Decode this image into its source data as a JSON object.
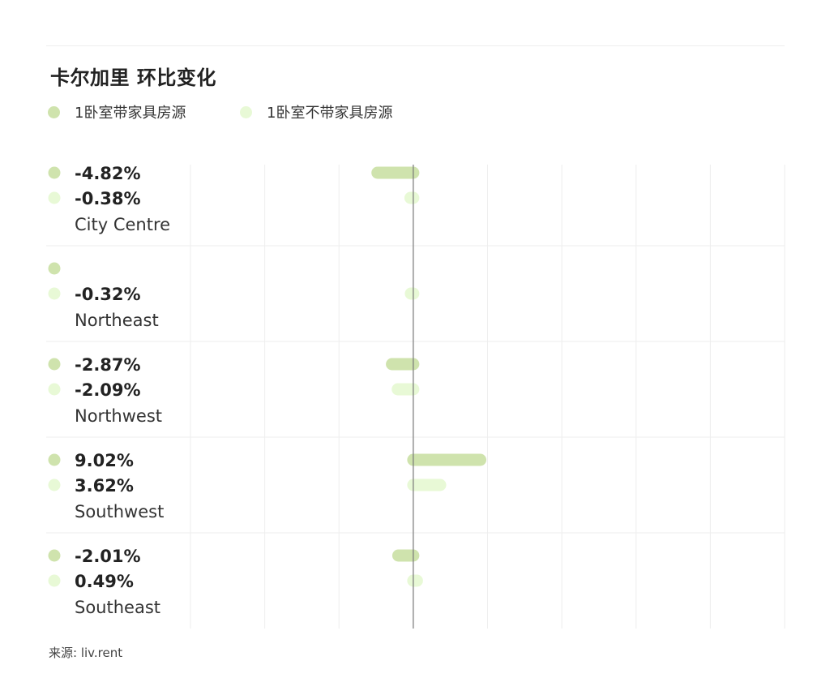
{
  "colors": {
    "furnished": "#cfe3ad",
    "unfurnished": "#e8f9d6",
    "axis": "#777777",
    "grid": "#eeeeee"
  },
  "source_label": "来源: liv.rent",
  "chart_data": {
    "type": "bar",
    "orientation": "horizontal",
    "title": "卡尔加里 环比变化",
    "legend_position": "top-left",
    "grid": true,
    "xlim": [
      -30,
      50
    ],
    "series": [
      {
        "name": "1卧室带家具房源",
        "values": [
          -4.82,
          null,
          -2.87,
          9.02,
          -2.01
        ],
        "labels": [
          "-4.82%",
          "",
          "-2.87%",
          "9.02%",
          "-2.01%"
        ]
      },
      {
        "name": "1卧室不带家具房源",
        "values": [
          -0.38,
          -0.32,
          -2.09,
          3.62,
          0.49
        ],
        "labels": [
          "-0.38%",
          "-0.32%",
          "-2.09%",
          "3.62%",
          "0.49%"
        ]
      }
    ],
    "categories": [
      "City Centre",
      "Northeast",
      "Northwest",
      "Southwest",
      "Southeast"
    ]
  }
}
